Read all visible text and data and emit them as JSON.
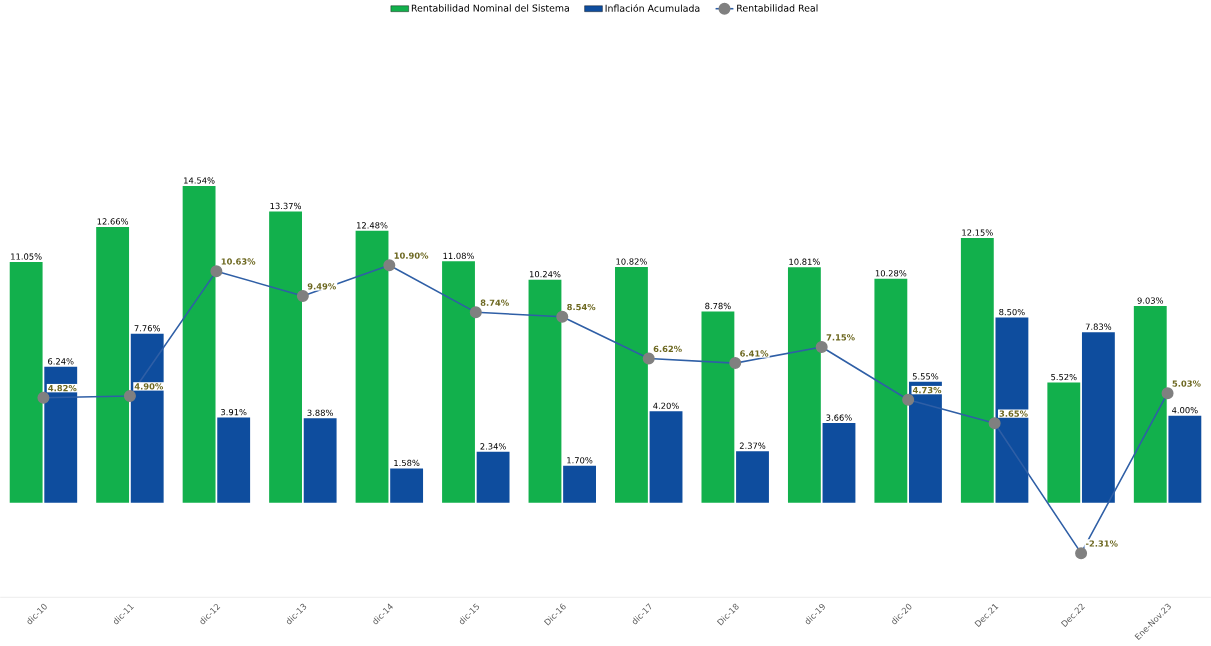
{
  "chart_data": {
    "type": "bar",
    "categories": [
      "dic-10",
      "dic-11",
      "dic-12",
      "dic-13",
      "dic-14",
      "dic-15",
      "Dic-16",
      "dic-17",
      "Dic-18",
      "dic-19",
      "dic-20",
      "Dec.21",
      "Dec.22",
      "Ene-Nov.23"
    ],
    "series": [
      {
        "name": "Rentabilidad Nominal del Sistema",
        "color": "#12b04c",
        "values": [
          11.05,
          12.66,
          14.54,
          13.37,
          12.48,
          11.08,
          10.24,
          10.82,
          8.78,
          10.81,
          10.28,
          12.15,
          5.52,
          9.03
        ],
        "value_labels": [
          "11.05%",
          "12.66%",
          "14.54%",
          "13.37%",
          "12.48%",
          "11.08%",
          "10.24%",
          "10.82%",
          "8.78%",
          "10.81%",
          "10.28%",
          "12.15%",
          "5.52%",
          "9.03%"
        ]
      },
      {
        "name": "Inflación Acumulada",
        "color": "#0e4d9e",
        "values": [
          6.24,
          7.76,
          3.91,
          3.88,
          1.58,
          2.34,
          1.7,
          4.2,
          2.37,
          3.66,
          5.55,
          8.5,
          7.83,
          4.0
        ],
        "value_labels": [
          "6.24%",
          "7.76%",
          "3.91%",
          "3.88%",
          "1.58%",
          "2.34%",
          "1.70%",
          "4.20%",
          "2.37%",
          "3.66%",
          "5.55%",
          "8.50%",
          "7.83%",
          "4.00%"
        ]
      },
      {
        "name": "Rentabilidad Real",
        "type": "line",
        "color": "#2f5fa6",
        "marker": "circle",
        "values": [
          4.82,
          4.9,
          10.63,
          9.49,
          10.9,
          8.74,
          8.54,
          6.62,
          6.41,
          7.15,
          4.73,
          3.65,
          -2.31,
          5.03
        ],
        "value_labels": [
          "4.82%",
          "4.90%",
          "10.63%",
          "9.49%",
          "10.90%",
          "8.74%",
          "8.54%",
          "6.62%",
          "6.41%",
          "7.15%",
          "4.73%",
          "3.65%",
          "-2.31%",
          "5.03%"
        ]
      }
    ],
    "legend": "top"
  }
}
